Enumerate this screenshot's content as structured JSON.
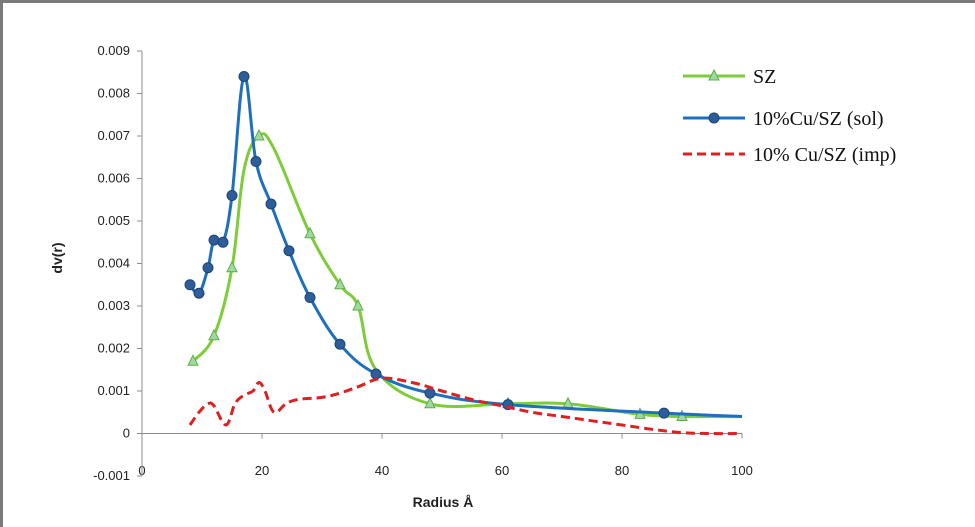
{
  "chart_data": {
    "type": "line",
    "title": "",
    "xlabel": "Radius Å",
    "ylabel": "dv(r)",
    "xlim": [
      0,
      100
    ],
    "ylim": [
      -0.001,
      0.009
    ],
    "xticks": [
      0,
      20,
      40,
      60,
      80,
      100
    ],
    "yticks": [
      -0.001,
      0,
      0.001,
      0.002,
      0.003,
      0.004,
      0.005,
      0.006,
      0.007,
      0.008,
      0.009
    ],
    "ytick_labels": [
      "-0.001",
      "0",
      "0.001",
      "0.002",
      "0.003",
      "0.004",
      "0.005",
      "0.006",
      "0.007",
      "0.008",
      "0.009"
    ],
    "grid": false,
    "legend_position": "top-right",
    "series": [
      {
        "name": "SZ",
        "color": "#7fcc3a",
        "marker": "triangle",
        "dash": "solid",
        "x": [
          8.5,
          12,
          15,
          17,
          19.5,
          22,
          28,
          33,
          36,
          39,
          48,
          61,
          71,
          83,
          90,
          100
        ],
        "y": [
          0.0017,
          0.0023,
          0.0039,
          0.0062,
          0.007,
          0.0067,
          0.0047,
          0.0035,
          0.003,
          0.0015,
          0.0007,
          0.0007,
          0.0007,
          0.00045,
          0.0004,
          0.0004
        ],
        "markers_at": [
          0,
          1,
          2,
          4,
          6,
          7,
          8,
          10,
          11,
          12,
          13,
          14
        ]
      },
      {
        "name": "10%Cu/SZ (sol)",
        "color": "#1f6fbf",
        "marker": "circle",
        "dash": "solid",
        "x": [
          8,
          9.5,
          11,
          12,
          13.5,
          15,
          17,
          19,
          21.5,
          24.5,
          28,
          33,
          39,
          48,
          61,
          87,
          100
        ],
        "y": [
          0.0035,
          0.0033,
          0.0039,
          0.00455,
          0.0045,
          0.0056,
          0.0084,
          0.0064,
          0.0054,
          0.0043,
          0.0032,
          0.0021,
          0.0014,
          0.00095,
          0.00068,
          0.00048,
          0.0004
        ],
        "markers_at": [
          0,
          1,
          2,
          3,
          4,
          5,
          6,
          7,
          8,
          9,
          10,
          11,
          12,
          13,
          14,
          15
        ]
      },
      {
        "name": "10% Cu/SZ (imp)",
        "color": "#e02020",
        "marker": "none",
        "dash": "dashed",
        "x": [
          8,
          9.5,
          11,
          12,
          14,
          15.5,
          17,
          18.5,
          19.5,
          20.5,
          22,
          24,
          26,
          30,
          33,
          36,
          40,
          45,
          50,
          55,
          60,
          65,
          70,
          75,
          80,
          85,
          90,
          95,
          100
        ],
        "y": [
          0.0002,
          0.0005,
          0.0007,
          0.00065,
          0.0002,
          0.0007,
          0.0009,
          0.001,
          0.0012,
          0.001,
          0.0005,
          0.0007,
          0.0008,
          0.00085,
          0.00095,
          0.0011,
          0.0013,
          0.0012,
          0.001,
          0.0008,
          0.00065,
          0.0005,
          0.0004,
          0.0003,
          0.0002,
          0.0001,
          2e-05,
          0.0,
          0.0
        ]
      }
    ]
  }
}
